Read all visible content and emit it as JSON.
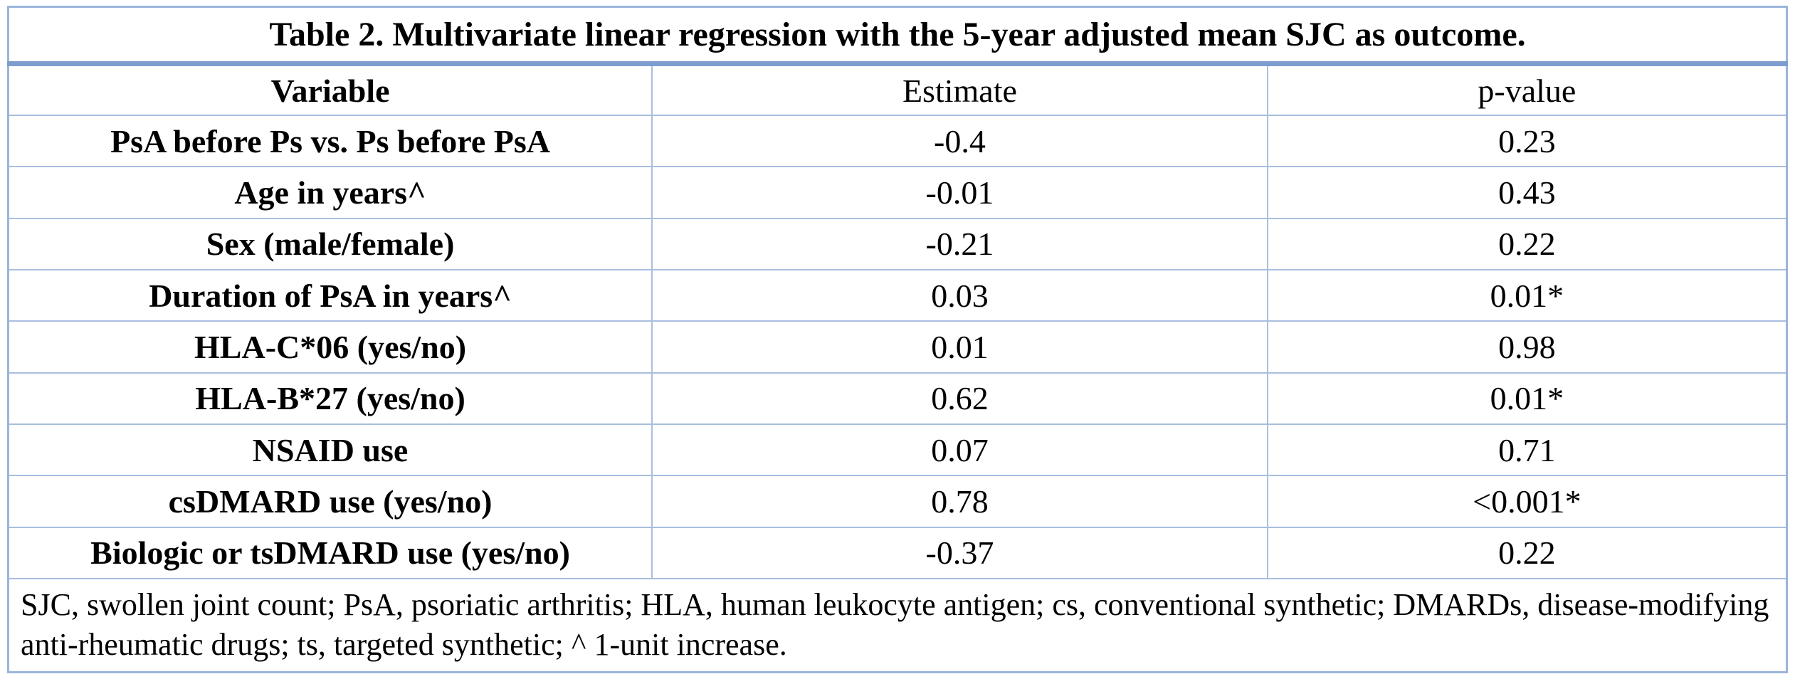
{
  "table": {
    "title": "Table 2. Multivariate linear regression with the 5-year adjusted mean SJC as outcome.",
    "columns": {
      "variable": "Variable",
      "estimate": "Estimate",
      "p_value": "p-value"
    },
    "rows": [
      {
        "variable": "PsA before Ps vs. Ps before PsA",
        "estimate": "-0.4",
        "p_value": "0.23"
      },
      {
        "variable": "Age in years^",
        "estimate": "-0.01",
        "p_value": "0.43"
      },
      {
        "variable": "Sex (male/female)",
        "estimate": "-0.21",
        "p_value": "0.22"
      },
      {
        "variable": "Duration of PsA in years^",
        "estimate": "0.03",
        "p_value": "0.01*"
      },
      {
        "variable": "HLA-C*06 (yes/no)",
        "estimate": "0.01",
        "p_value": "0.98"
      },
      {
        "variable": "HLA-B*27 (yes/no)",
        "estimate": "0.62",
        "p_value": "0.01*"
      },
      {
        "variable": "NSAID use",
        "estimate": "0.07",
        "p_value": "0.71"
      },
      {
        "variable": "csDMARD use (yes/no)",
        "estimate": "0.78",
        "p_value": "<0.001*"
      },
      {
        "variable": "Biologic or tsDMARD use (yes/no)",
        "estimate": "-0.37",
        "p_value": "0.22"
      }
    ],
    "footnote": "SJC, swollen joint count; PsA, psoriatic arthritis; HLA, human leukocyte antigen; cs, conventional synthetic; DMARDs, disease-modifying anti-rheumatic drugs; ts, targeted synthetic; ^ 1-unit increase.",
    "colors": {
      "cell_border": "#a9bede",
      "title_rule": "#7d9cd0",
      "text": "#000000",
      "background": "#ffffff"
    }
  }
}
